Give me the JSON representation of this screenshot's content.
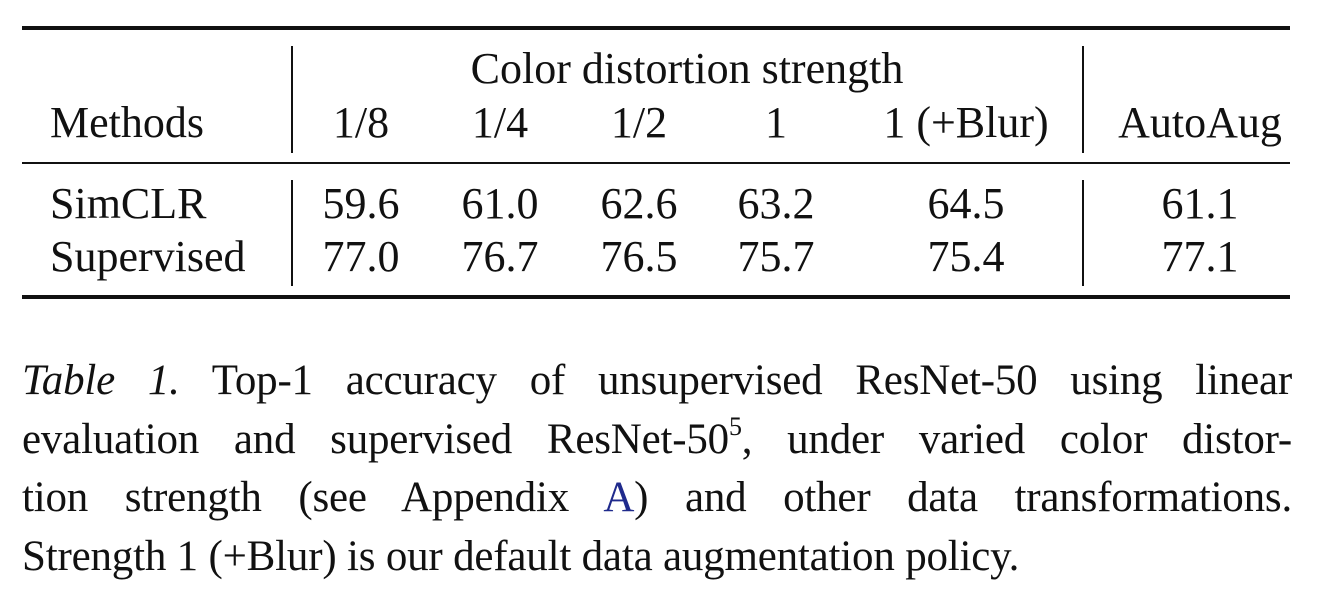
{
  "table": {
    "group_header": "Color distortion strength",
    "columns": [
      "Methods",
      "1/8",
      "1/4",
      "1/2",
      "1",
      "1 (+Blur)",
      "AutoAug"
    ],
    "rows": [
      {
        "method": "SimCLR",
        "values": [
          "59.6",
          "61.0",
          "62.6",
          "63.2",
          "64.5",
          "61.1"
        ]
      },
      {
        "method": "Supervised",
        "values": [
          "77.0",
          "76.7",
          "76.5",
          "75.7",
          "75.4",
          "77.1"
        ]
      }
    ]
  },
  "caption": {
    "label": "Table 1.",
    "line1_rest": " Top-1 accuracy of unsupervised ResNet-50 using linear",
    "line2_a": "evaluation and supervised ResNet-50",
    "line2_sup": "5",
    "line2_b": ", under varied color distor-",
    "line3_a": "tion strength (see Appendix ",
    "line3_link": "A",
    "line3_b": ") and other data transformations.",
    "line4": "Strength 1 (+Blur) is our default data augmentation policy."
  },
  "colors": {
    "text": "#111111",
    "link": "#1f2a8c"
  }
}
